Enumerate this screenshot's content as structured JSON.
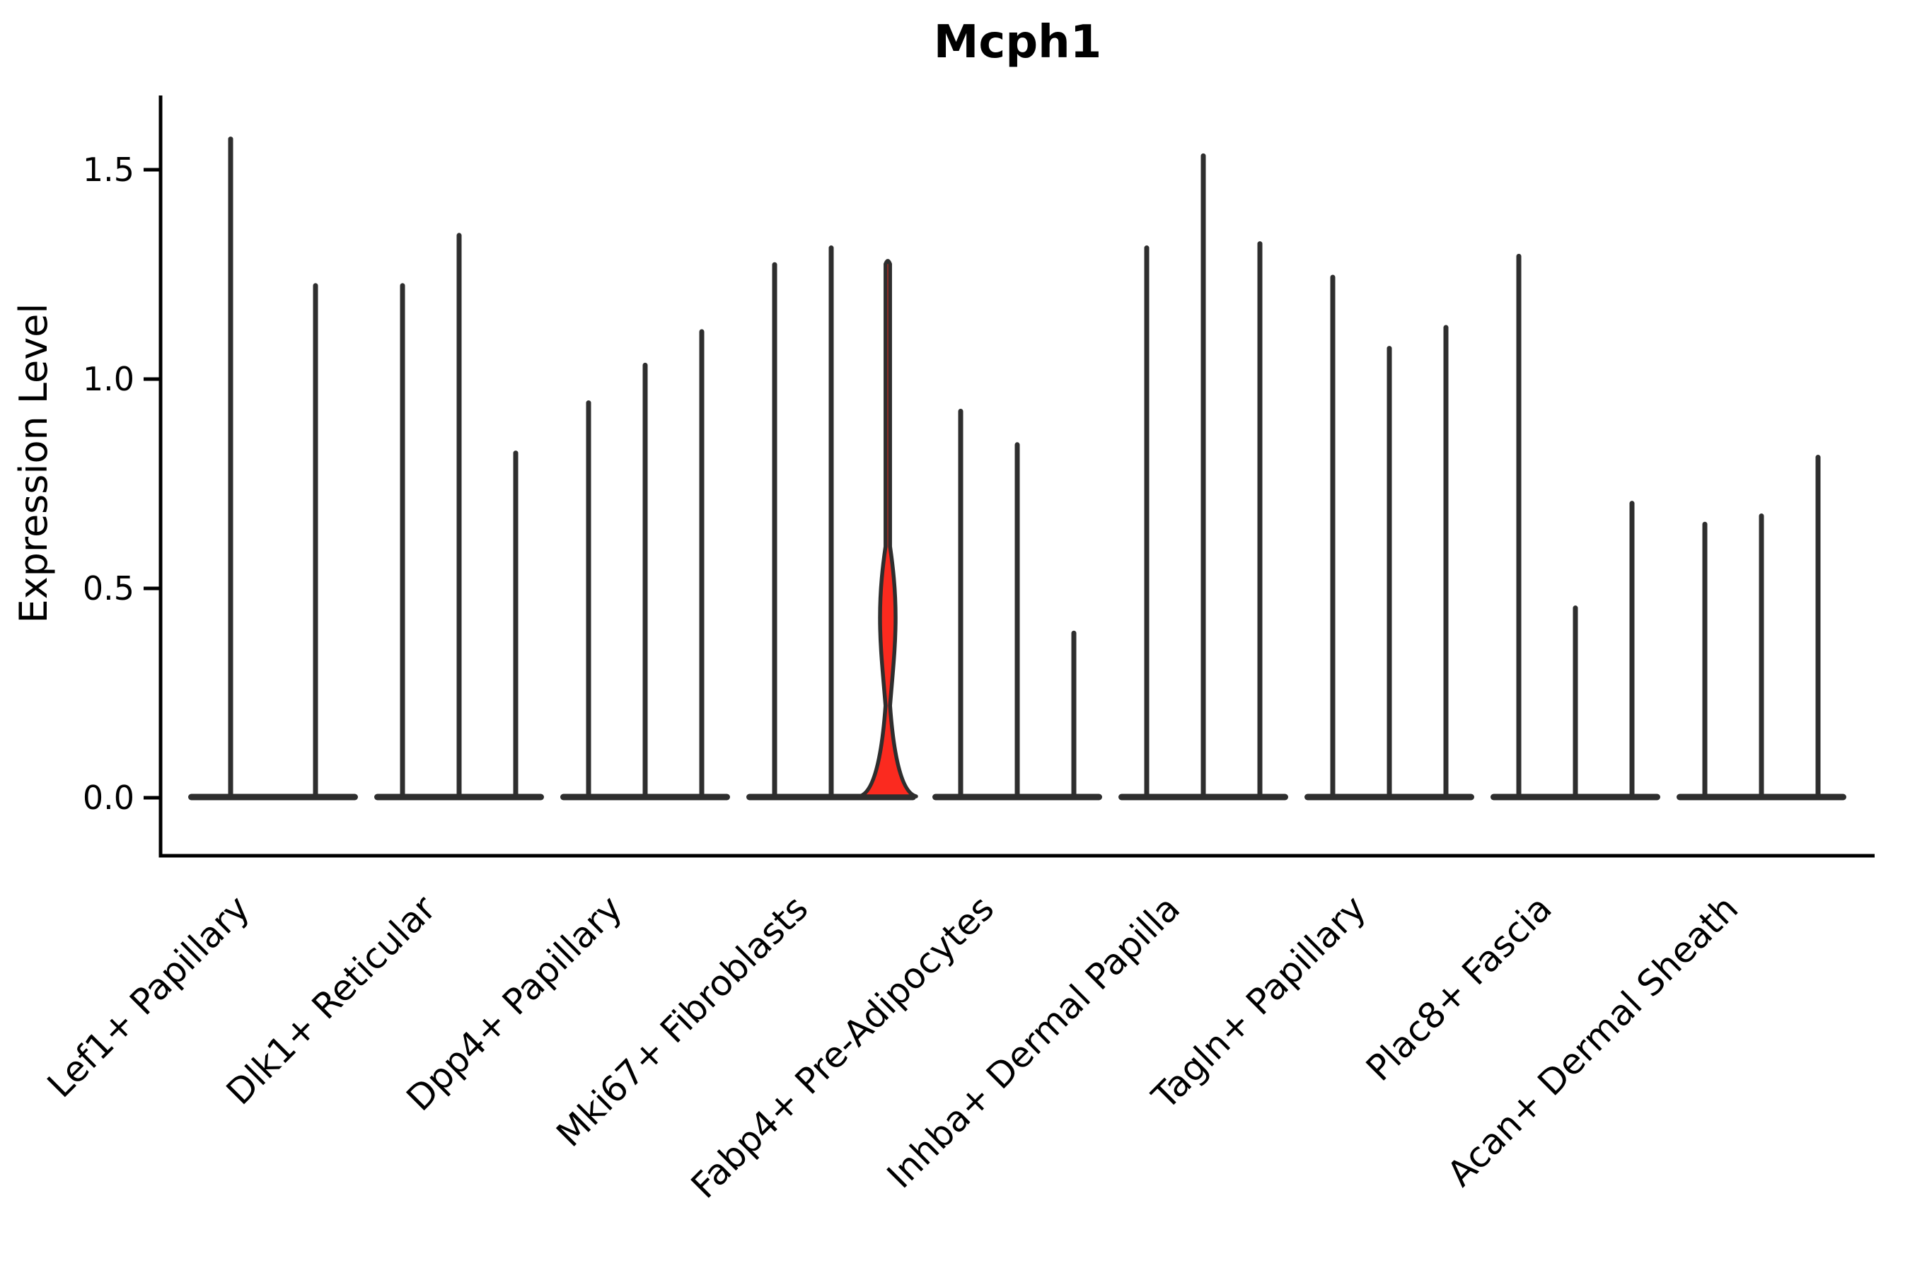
{
  "title": "Mcph1",
  "chart_data": {
    "type": "violin",
    "title": "Mcph1",
    "ylabel": "Expression Level",
    "xlabel": "",
    "ylim": [
      0,
      1.67
    ],
    "yticks": [
      0.0,
      0.5,
      1.0,
      1.5
    ],
    "ytick_labels": [
      "0.0",
      "0.5",
      "1.0",
      "1.5"
    ],
    "grid": false,
    "legend": "none",
    "background_color": "#ffffff",
    "line_color": "#2e2e2e",
    "axis_color": "#000000",
    "categories": [
      "Lef1+ Papillary",
      "Dlk1+ Reticular",
      "Dpp4+ Papillary",
      "Mki67+ Fibroblasts",
      "Fabp4+ Pre-Adipocytes",
      "Inhba+ Dermal Papilla",
      "Tagln+ Papillary",
      "Plac8+ Fascia",
      "Acan+ Dermal Sheath"
    ],
    "series": [
      {
        "category": "Lef1+ Papillary",
        "violin_maxima": [
          1.58,
          1.23
        ]
      },
      {
        "category": "Dlk1+ Reticular",
        "violin_maxima": [
          1.23,
          1.35,
          0.83
        ]
      },
      {
        "category": "Dpp4+ Papillary",
        "violin_maxima": [
          0.95,
          1.04,
          1.12
        ]
      },
      {
        "category": "Mki67+ Fibroblasts",
        "violin_maxima": [
          1.28,
          1.32,
          1.29
        ]
      },
      {
        "category": "Fabp4+ Pre-Adipocytes",
        "violin_maxima": [
          0.93,
          0.85,
          0.4
        ]
      },
      {
        "category": "Inhba+ Dermal Papilla",
        "violin_maxima": [
          1.32,
          1.54,
          1.33
        ]
      },
      {
        "category": "Tagln+ Papillary",
        "violin_maxima": [
          1.25,
          1.08,
          1.13
        ]
      },
      {
        "category": "Plac8+ Fascia",
        "violin_maxima": [
          1.3,
          0.46,
          0.71
        ]
      },
      {
        "category": "Acan+ Dermal Sheath",
        "violin_maxima": [
          0.66,
          0.68,
          0.82
        ]
      }
    ],
    "highlight": {
      "category_index": 3,
      "violin_index": 2,
      "fill_color": "#fb2a1f",
      "max": 1.29,
      "base_bump_top": 0.22,
      "bulge_bottom": 0.3,
      "bulge_center": 0.43,
      "bulge_top": 0.6
    }
  }
}
